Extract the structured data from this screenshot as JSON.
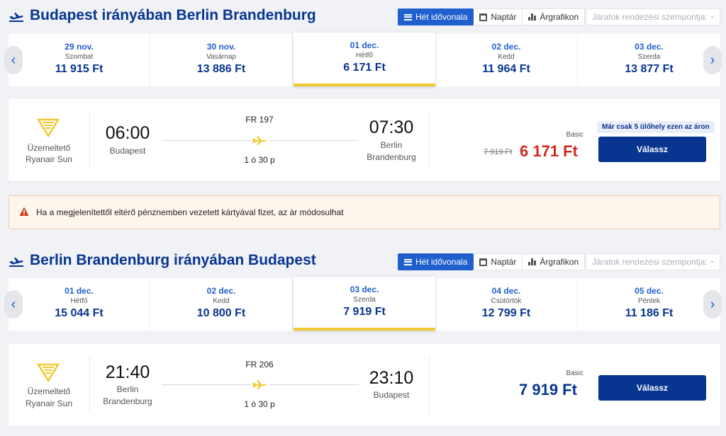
{
  "outbound": {
    "title": "Budapest irányában Berlin Brandenburg",
    "view_buttons": [
      "Hét idővonala",
      "Naptár",
      "Árgrafikon"
    ],
    "sort_placeholder": "Járatok rendezési szempontja:",
    "dates": [
      {
        "date": "29 nov.",
        "day": "Szombat",
        "price": "11 915 Ft"
      },
      {
        "date": "30 nov.",
        "day": "Vasárnap",
        "price": "13 886 Ft"
      },
      {
        "date": "01 dec.",
        "day": "Hétfő",
        "price": "6 171 Ft"
      },
      {
        "date": "02 dec.",
        "day": "Kedd",
        "price": "11 964 Ft"
      },
      {
        "date": "03 dec.",
        "day": "Szerda",
        "price": "13 877 Ft"
      }
    ],
    "selected_index": 2,
    "flight": {
      "operator_label": "Üzemeltető",
      "operator_name": "Ryanair Sun",
      "dep_time": "06:00",
      "dep_place": "Budapest",
      "flight_no": "FR 197",
      "duration": "1 ó 30 p",
      "arr_time": "07:30",
      "arr_place": "Berlin Brandenburg",
      "fare": "Basic",
      "badge": "Már csak 5 ülőhely ezen az áron",
      "old_price": "7 919 Ft",
      "price": "6 171 Ft",
      "price_color": "#d12a1d",
      "select_label": "Válassz"
    }
  },
  "warning": {
    "text": "Ha a megjelenítettől eltérő pénznemben vezetett kártyával fizet, az ár módosulhat",
    "icon": "warning-icon"
  },
  "inbound": {
    "title": "Berlin Brandenburg irányában Budapest",
    "view_buttons": [
      "Hét idővonala",
      "Naptár",
      "Árgrafikon"
    ],
    "sort_placeholder": "Járatok rendezési szempontja:",
    "dates": [
      {
        "date": "01 dec.",
        "day": "Hétfő",
        "price": "15 044 Ft"
      },
      {
        "date": "02 dec.",
        "day": "Kedd",
        "price": "10 800 Ft"
      },
      {
        "date": "03 dec.",
        "day": "Szerda",
        "price": "7 919 Ft"
      },
      {
        "date": "04 dec.",
        "day": "Csütörtök",
        "price": "12 799 Ft"
      },
      {
        "date": "05 dec.",
        "day": "Péntek",
        "price": "11 186 Ft"
      }
    ],
    "selected_index": 2,
    "flight": {
      "operator_label": "Üzemeltető",
      "operator_name": "Ryanair Sun",
      "dep_time": "21:40",
      "dep_place": "Berlin Brandenburg",
      "flight_no": "FR 206",
      "duration": "1 ó 30 p",
      "arr_time": "23:10",
      "arr_place": "Budapest",
      "fare": "Basic",
      "price": "7 919 Ft",
      "price_color": "#073590",
      "select_label": "Válassz"
    }
  },
  "colors": {
    "brand_blue": "#073590",
    "accent_blue": "#1f5fce",
    "yellow": "#f1c933"
  }
}
